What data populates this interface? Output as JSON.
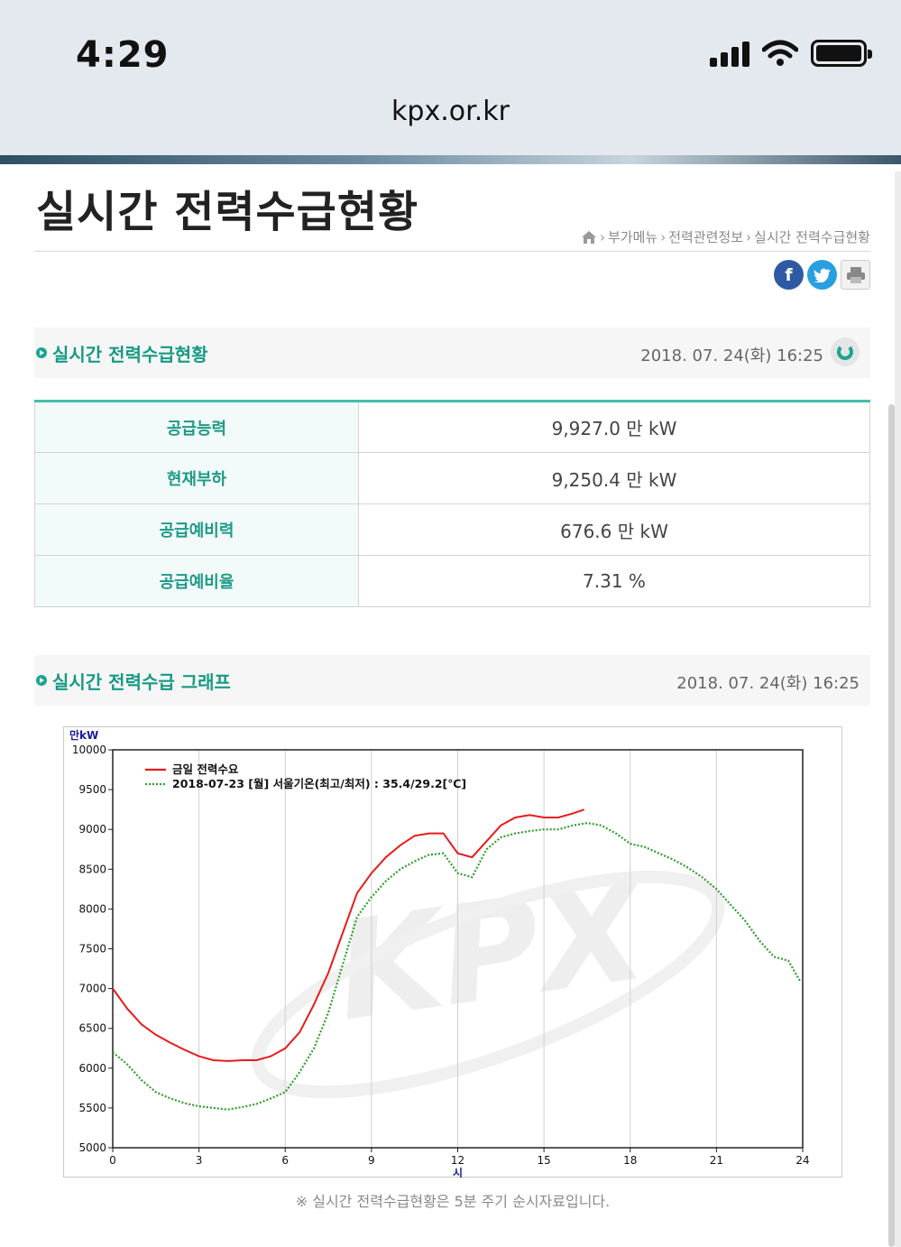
{
  "status": {
    "time": "4:29"
  },
  "browser": {
    "url": "kpx.or.kr"
  },
  "page": {
    "title": "실시간 전력수급현황"
  },
  "breadcrumb": {
    "items": [
      "부가메뉴",
      "전력관련정보",
      "실시간 전력수급현황"
    ]
  },
  "social": {
    "facebook": "f",
    "twitter": "t"
  },
  "status_section": {
    "title": "실시간 전력수급현황",
    "timestamp": "2018. 07. 24(화) 16:25"
  },
  "supply_table": {
    "rows": [
      {
        "label": "공급능력",
        "value": "9,927.0 만 kW"
      },
      {
        "label": "현재부하",
        "value": "9,250.4 만 kW"
      },
      {
        "label": "공급예비력",
        "value": "676.6 만 kW"
      },
      {
        "label": "공급예비율",
        "value": "7.31 %"
      }
    ]
  },
  "graph_section": {
    "title": "실시간 전력수급 그래프",
    "timestamp": "2018. 07. 24(화) 16:25"
  },
  "chart_data": {
    "type": "line",
    "ylabel": "만kW",
    "xlabel": "시",
    "xlim": [
      0,
      24
    ],
    "ylim": [
      5000,
      10000
    ],
    "xticks": [
      0,
      3,
      6,
      9,
      12,
      15,
      18,
      21,
      24
    ],
    "yticks": [
      5000,
      5500,
      6000,
      6500,
      7000,
      7500,
      8000,
      8500,
      9000,
      9500,
      10000
    ],
    "legend_position": "top-left",
    "grid": true,
    "watermark": "KPX",
    "series": [
      {
        "name": "금일 전력수요",
        "color": "#e51c1c",
        "style": "solid",
        "x": [
          0,
          0.5,
          1,
          1.5,
          2,
          2.5,
          3,
          3.5,
          4,
          4.5,
          5,
          5.5,
          6,
          6.5,
          7,
          7.5,
          8,
          8.5,
          9,
          9.5,
          10,
          10.5,
          11,
          11.5,
          12,
          12.5,
          13,
          13.5,
          14,
          14.5,
          15,
          15.5,
          16,
          16.4
        ],
        "values": [
          7000,
          6750,
          6550,
          6420,
          6320,
          6230,
          6150,
          6100,
          6090,
          6100,
          6100,
          6150,
          6250,
          6450,
          6800,
          7200,
          7700,
          8200,
          8450,
          8650,
          8800,
          8920,
          8950,
          8950,
          8700,
          8650,
          8850,
          9050,
          9150,
          9180,
          9150,
          9150,
          9200,
          9250
        ]
      },
      {
        "name": "2018-07-23 [월] 서울기온(최고/최저) : 35.4/29.2[℃]",
        "color": "#2e9e2e",
        "style": "dotted",
        "x": [
          0,
          0.5,
          1,
          1.5,
          2,
          2.5,
          3,
          3.5,
          4,
          4.5,
          5,
          5.5,
          6,
          6.5,
          7,
          7.5,
          8,
          8.5,
          9,
          9.5,
          10,
          10.5,
          11,
          11.5,
          12,
          12.5,
          13,
          13.5,
          14,
          14.5,
          15,
          15.5,
          16,
          16.5,
          17,
          17.5,
          18,
          18.5,
          19,
          19.5,
          20,
          20.5,
          21,
          21.5,
          22,
          22.5,
          23,
          23.5,
          23.9
        ],
        "values": [
          6200,
          6050,
          5850,
          5700,
          5620,
          5560,
          5520,
          5500,
          5480,
          5510,
          5550,
          5620,
          5700,
          5950,
          6250,
          6700,
          7300,
          7900,
          8150,
          8350,
          8500,
          8600,
          8680,
          8700,
          8450,
          8400,
          8750,
          8900,
          8950,
          8980,
          9000,
          9000,
          9050,
          9080,
          9050,
          8950,
          8820,
          8780,
          8700,
          8620,
          8520,
          8400,
          8250,
          8050,
          7850,
          7600,
          7400,
          7350,
          7100
        ]
      }
    ]
  },
  "footer_note": "※ 실시간 전력수급현황은 5분 주기 순시자료입니다."
}
